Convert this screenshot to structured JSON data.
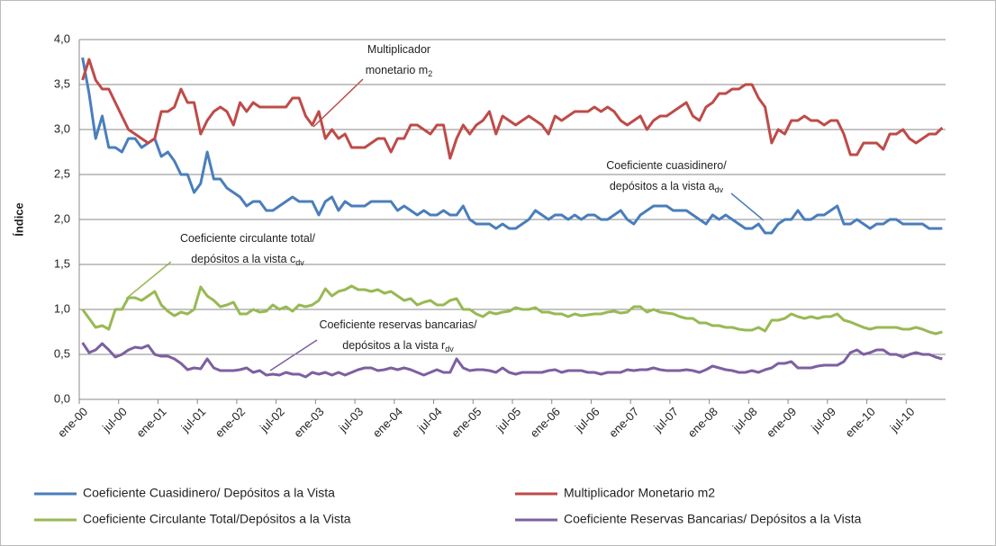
{
  "chart_data": {
    "type": "line",
    "y_label": "Índice",
    "categories": [
      "ene-00",
      null,
      null,
      null,
      null,
      null,
      "jul-00",
      null,
      null,
      null,
      null,
      null,
      "ene-01",
      null,
      null,
      null,
      null,
      null,
      "jul-01",
      null,
      null,
      null,
      null,
      null,
      "ene-02",
      null,
      null,
      null,
      null,
      null,
      "jul-02",
      null,
      null,
      null,
      null,
      null,
      "ene-03",
      null,
      null,
      null,
      null,
      null,
      "jul-03",
      null,
      null,
      null,
      null,
      null,
      "ene-04",
      null,
      null,
      null,
      null,
      null,
      "jul-04",
      null,
      null,
      null,
      null,
      null,
      "ene-05",
      null,
      null,
      null,
      null,
      null,
      "jul-05",
      null,
      null,
      null,
      null,
      null,
      "ene-06",
      null,
      null,
      null,
      null,
      null,
      "jul-06",
      null,
      null,
      null,
      null,
      null,
      "ene-07",
      null,
      null,
      null,
      null,
      null,
      "jul-07",
      null,
      null,
      null,
      null,
      null,
      "ene-08",
      null,
      null,
      null,
      null,
      null,
      "jul-08",
      null,
      null,
      null,
      null,
      null,
      "ene-09",
      null,
      null,
      null,
      null,
      null,
      "jul-09",
      null,
      null,
      null,
      null,
      null,
      "ene-10",
      null,
      null,
      null,
      null,
      null,
      "jul-10",
      null,
      null,
      null,
      null,
      null
    ],
    "ylim": [
      0,
      4
    ],
    "yticks": [
      {
        "value": 0,
        "label": "0,0"
      },
      {
        "value": 0.5,
        "label": "0,5"
      },
      {
        "value": 1,
        "label": "1,0"
      },
      {
        "value": 1.5,
        "label": "1,5"
      },
      {
        "value": 2,
        "label": "2,0"
      },
      {
        "value": 2.5,
        "label": "2,5"
      },
      {
        "value": 3,
        "label": "3,0"
      },
      {
        "value": 3.5,
        "label": "3,5"
      },
      {
        "value": 4,
        "label": "4,0"
      }
    ],
    "grid": true,
    "legend": "bottom",
    "series": [
      {
        "name": "Coeficiente Cuasidinero/ Depósitos a la Vista",
        "color": "#4a7ebb",
        "values": [
          3.8,
          3.4,
          2.9,
          3.15,
          2.8,
          2.8,
          2.75,
          2.9,
          2.9,
          2.8,
          2.85,
          2.9,
          2.7,
          2.75,
          2.65,
          2.5,
          2.5,
          2.3,
          2.4,
          2.75,
          2.45,
          2.45,
          2.35,
          2.3,
          2.25,
          2.15,
          2.2,
          2.2,
          2.1,
          2.1,
          2.15,
          2.2,
          2.25,
          2.2,
          2.2,
          2.2,
          2.05,
          2.2,
          2.25,
          2.1,
          2.2,
          2.15,
          2.15,
          2.15,
          2.2,
          2.2,
          2.2,
          2.2,
          2.1,
          2.15,
          2.1,
          2.05,
          2.1,
          2.05,
          2.05,
          2.1,
          2.05,
          2.05,
          2.15,
          2.0,
          1.95,
          1.95,
          1.95,
          1.9,
          1.95,
          1.9,
          1.9,
          1.95,
          2.0,
          2.1,
          2.05,
          2.0,
          2.05,
          2.05,
          2.0,
          2.05,
          2.0,
          2.05,
          2.05,
          2.0,
          2.0,
          2.05,
          2.1,
          2.0,
          1.95,
          2.05,
          2.1,
          2.15,
          2.15,
          2.15,
          2.1,
          2.1,
          2.1,
          2.05,
          2.0,
          1.95,
          2.05,
          2.0,
          2.05,
          2.0,
          1.95,
          1.9,
          1.9,
          1.95,
          1.85,
          1.85,
          1.95,
          2.0,
          2.0,
          2.1,
          2.0,
          2.0,
          2.05,
          2.05,
          2.1,
          2.15,
          1.95,
          1.95,
          2.0,
          1.95,
          1.9,
          1.95,
          1.95,
          2.0,
          2.0,
          1.95,
          1.95,
          1.95,
          1.95,
          1.9,
          1.9,
          1.9
        ]
      },
      {
        "name": "Multiplicador Monetario m2",
        "color": "#be4b48",
        "values": [
          3.55,
          3.78,
          3.55,
          3.45,
          3.45,
          3.3,
          3.15,
          3.0,
          2.95,
          2.9,
          2.85,
          2.9,
          3.2,
          3.2,
          3.25,
          3.45,
          3.3,
          3.3,
          2.95,
          3.1,
          3.2,
          3.25,
          3.2,
          3.05,
          3.3,
          3.2,
          3.3,
          3.25,
          3.25,
          3.25,
          3.25,
          3.25,
          3.35,
          3.35,
          3.15,
          3.05,
          3.2,
          2.9,
          3.0,
          2.9,
          2.95,
          2.8,
          2.8,
          2.8,
          2.85,
          2.9,
          2.9,
          2.75,
          2.9,
          2.9,
          3.05,
          3.05,
          3.0,
          2.95,
          3.05,
          3.05,
          2.68,
          2.9,
          3.05,
          2.95,
          3.05,
          3.1,
          3.2,
          2.95,
          3.15,
          3.1,
          3.05,
          3.1,
          3.15,
          3.1,
          3.05,
          2.95,
          3.15,
          3.1,
          3.15,
          3.2,
          3.2,
          3.2,
          3.25,
          3.2,
          3.25,
          3.2,
          3.1,
          3.05,
          3.1,
          3.15,
          3.0,
          3.1,
          3.15,
          3.15,
          3.2,
          3.25,
          3.3,
          3.15,
          3.1,
          3.25,
          3.3,
          3.4,
          3.4,
          3.45,
          3.45,
          3.5,
          3.5,
          3.35,
          3.25,
          2.85,
          3.0,
          2.95,
          3.1,
          3.1,
          3.15,
          3.1,
          3.1,
          3.05,
          3.1,
          3.1,
          2.95,
          2.72,
          2.72,
          2.85,
          2.85,
          2.85,
          2.78,
          2.95,
          2.95,
          3.0,
          2.9,
          2.85,
          2.9,
          2.95,
          2.95,
          3.02
        ]
      },
      {
        "name": "Coeficiente Circulante Total/Depósitos a la Vista",
        "color": "#98b954",
        "values": [
          1.0,
          0.9,
          0.8,
          0.82,
          0.78,
          1.0,
          1.0,
          1.13,
          1.13,
          1.1,
          1.15,
          1.2,
          1.05,
          0.98,
          0.93,
          0.97,
          0.95,
          1.0,
          1.25,
          1.15,
          1.1,
          1.03,
          1.05,
          1.08,
          0.95,
          0.95,
          1.0,
          0.97,
          0.98,
          1.05,
          1.0,
          1.03,
          0.98,
          1.05,
          1.03,
          1.05,
          1.1,
          1.23,
          1.15,
          1.2,
          1.22,
          1.26,
          1.22,
          1.22,
          1.2,
          1.22,
          1.18,
          1.2,
          1.15,
          1.1,
          1.12,
          1.05,
          1.08,
          1.1,
          1.05,
          1.05,
          1.1,
          1.12,
          1.0,
          1.0,
          0.95,
          0.92,
          0.97,
          0.95,
          0.97,
          0.98,
          1.02,
          1.0,
          1.0,
          1.02,
          0.97,
          0.97,
          0.95,
          0.95,
          0.92,
          0.95,
          0.93,
          0.94,
          0.95,
          0.95,
          0.97,
          0.98,
          0.96,
          0.97,
          1.03,
          1.03,
          0.97,
          1.0,
          0.97,
          0.96,
          0.95,
          0.92,
          0.9,
          0.9,
          0.85,
          0.85,
          0.82,
          0.82,
          0.8,
          0.8,
          0.78,
          0.77,
          0.77,
          0.8,
          0.76,
          0.88,
          0.88,
          0.9,
          0.95,
          0.92,
          0.9,
          0.92,
          0.9,
          0.92,
          0.92,
          0.95,
          0.88,
          0.86,
          0.83,
          0.8,
          0.78,
          0.8,
          0.8,
          0.8,
          0.8,
          0.78,
          0.78,
          0.8,
          0.78,
          0.75,
          0.73,
          0.75
        ]
      },
      {
        "name": "Coeficiente Reservas Bancarias/ Depósitos a la Vista",
        "color": "#7d60a0",
        "values": [
          0.63,
          0.52,
          0.55,
          0.62,
          0.55,
          0.47,
          0.5,
          0.55,
          0.58,
          0.57,
          0.6,
          0.5,
          0.48,
          0.48,
          0.45,
          0.4,
          0.33,
          0.35,
          0.34,
          0.45,
          0.35,
          0.32,
          0.32,
          0.32,
          0.33,
          0.35,
          0.3,
          0.32,
          0.27,
          0.28,
          0.27,
          0.3,
          0.28,
          0.28,
          0.25,
          0.3,
          0.28,
          0.3,
          0.27,
          0.3,
          0.27,
          0.3,
          0.33,
          0.35,
          0.35,
          0.32,
          0.33,
          0.35,
          0.33,
          0.35,
          0.33,
          0.3,
          0.27,
          0.3,
          0.33,
          0.3,
          0.3,
          0.45,
          0.35,
          0.32,
          0.33,
          0.33,
          0.32,
          0.3,
          0.35,
          0.3,
          0.28,
          0.3,
          0.3,
          0.3,
          0.3,
          0.32,
          0.33,
          0.3,
          0.32,
          0.32,
          0.32,
          0.3,
          0.3,
          0.28,
          0.3,
          0.3,
          0.3,
          0.33,
          0.32,
          0.33,
          0.33,
          0.35,
          0.33,
          0.32,
          0.32,
          0.32,
          0.33,
          0.32,
          0.3,
          0.33,
          0.37,
          0.35,
          0.33,
          0.32,
          0.3,
          0.3,
          0.32,
          0.3,
          0.33,
          0.35,
          0.4,
          0.4,
          0.42,
          0.35,
          0.35,
          0.35,
          0.37,
          0.38,
          0.38,
          0.38,
          0.42,
          0.52,
          0.55,
          0.5,
          0.52,
          0.55,
          0.55,
          0.5,
          0.5,
          0.47,
          0.5,
          0.52,
          0.5,
          0.5,
          0.47,
          0.45
        ]
      }
    ],
    "annotations": [
      {
        "lines": [
          {
            "text": "Multiplicador"
          },
          {
            "text": "monetario m",
            "sub": "2"
          }
        ]
      },
      {
        "lines": [
          {
            "text": "Coeficiente cuasidinero/"
          },
          {
            "text": "depósitos a la vista a",
            "sub": "dv"
          }
        ]
      },
      {
        "lines": [
          {
            "text": "Coeficiente circulante total/"
          },
          {
            "text": "depósitos a la vista c",
            "sub": "dv"
          }
        ]
      },
      {
        "lines": [
          {
            "text": "Coeficiente reservas bancarias/"
          },
          {
            "text": "depósitos a la vista r",
            "sub": "dv"
          }
        ]
      }
    ]
  }
}
